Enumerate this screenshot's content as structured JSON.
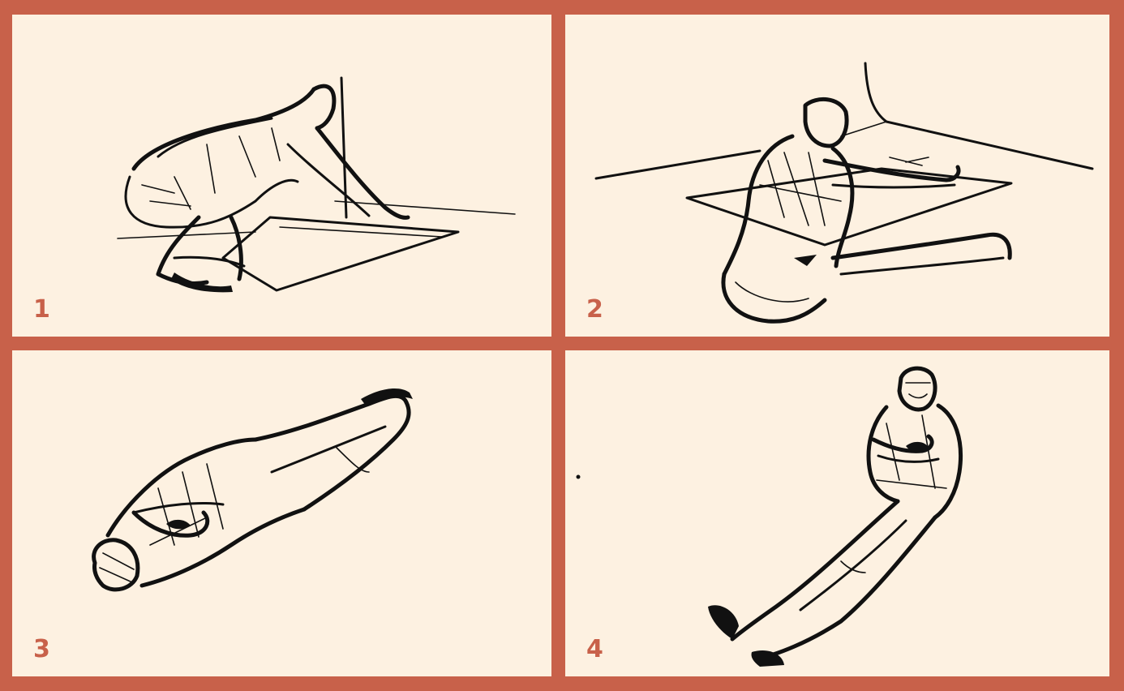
{
  "panels": [
    {
      "label": "1"
    },
    {
      "label": "2"
    },
    {
      "label": "3"
    },
    {
      "label": "4"
    }
  ],
  "colors": {
    "border": "#c8614a",
    "paper": "#fdf1e1",
    "ink": "#111111"
  }
}
